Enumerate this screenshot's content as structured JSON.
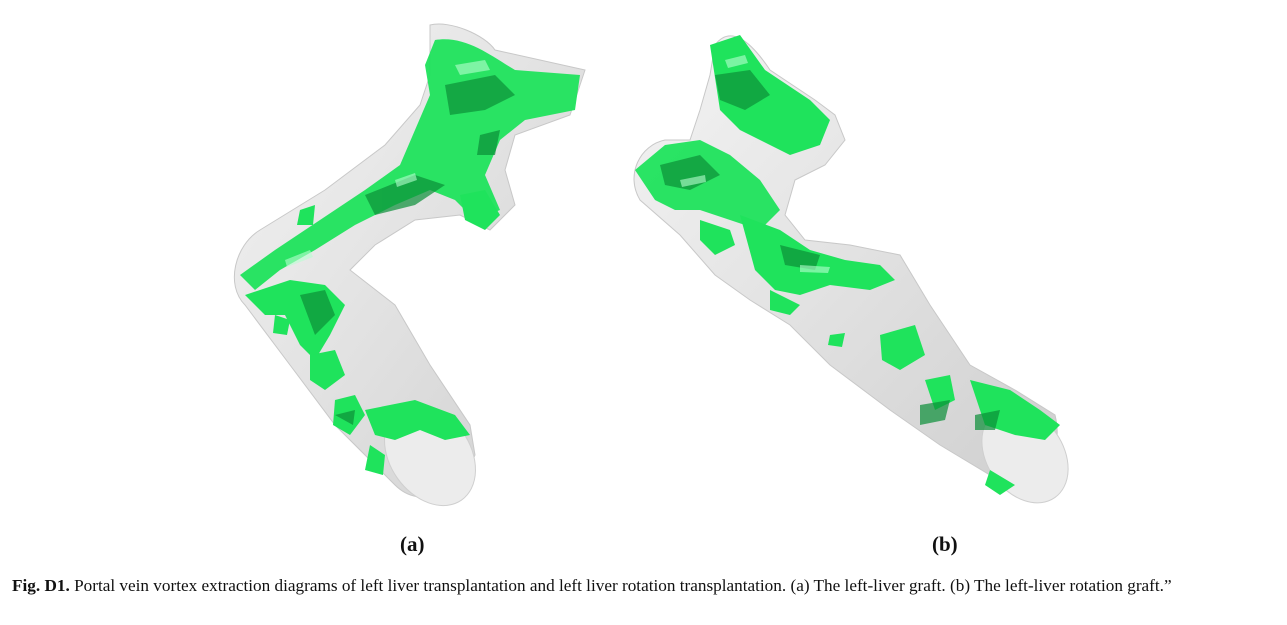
{
  "panels": [
    {
      "id": "a",
      "label": "(a)"
    },
    {
      "id": "b",
      "label": "(b)"
    }
  ],
  "caption": {
    "figure_number": "Fig. D1.",
    "text": "Portal vein vortex extraction diagrams of left liver transplantation and left liver rotation transplantation. (a) The left-liver graft. (b) The left-liver rotation graft.”"
  },
  "colors": {
    "vessel": "#e3e3e3",
    "vessel_edge": "#c9c9c9",
    "vortex": "#19e05a",
    "vortex_dark": "#0a8a35"
  }
}
